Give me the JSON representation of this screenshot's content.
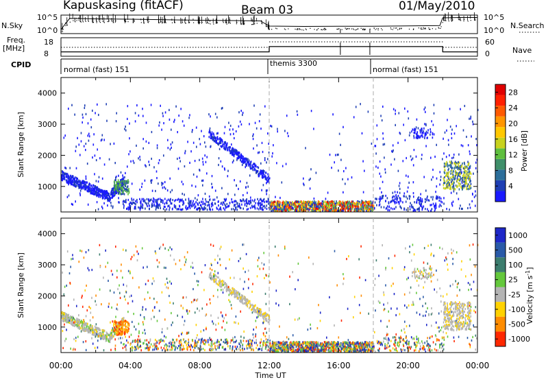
{
  "header": {
    "station": "Kapuskasing (fitACF)",
    "beam": "Beam 03",
    "date": "01/May/2010"
  },
  "chart_data": [
    {
      "type": "line",
      "panel": "noise",
      "left_label": "N.Sky",
      "right_label": "N.Search",
      "left_ticks": [
        "10^5",
        "10^0"
      ],
      "right_ticks": [
        "10^5",
        "10^0"
      ],
      "x": [
        "00:00",
        "00:30",
        "02:00",
        "04:00",
        "06:00",
        "08:00",
        "10:00",
        "11:30",
        "12:00",
        "14:00",
        "16:00",
        "18:00",
        "20:00",
        "21:50",
        "22:00",
        "23:00",
        "24:00"
      ],
      "series": [
        {
          "values": [
            0.2,
            0.85,
            0.82,
            0.8,
            0.77,
            0.74,
            0.72,
            0.7,
            0.4,
            0.38,
            0.39,
            0.39,
            0.41,
            0.43,
            0.88,
            0.9,
            0.9
          ]
        }
      ]
    },
    {
      "type": "line",
      "panel": "frequency",
      "left_label": "Freq.",
      "left_unit": "[MHz]",
      "right_label": "Nave",
      "left_ticks": [
        "18",
        "8"
      ],
      "right_ticks": [
        "60",
        "0"
      ],
      "x": [
        "00:00",
        "12:00",
        "18:00",
        "22:00",
        "24:00"
      ],
      "series": [
        {
          "name": "Freq.",
          "values": [
            10,
            13.5,
            13.5,
            10,
            10
          ]
        }
      ]
    },
    {
      "type": "table",
      "panel": "cpid",
      "label": "CPID",
      "segments": [
        {
          "name": "normal (fast) 151",
          "start": "00:00",
          "end": "12:00"
        },
        {
          "name": "themis 3300",
          "start": "12:00",
          "end": "18:00"
        },
        {
          "name": "normal (fast) 151",
          "start": "18:00",
          "end": "24:00"
        }
      ]
    },
    {
      "type": "heatmap",
      "panel": "power",
      "ylabel": "Slant Range [km]",
      "yticks": [
        1000,
        2000,
        3000,
        4000
      ],
      "ylim": [
        180,
        4500
      ],
      "colorbar_label": "Power [dB]",
      "colorbar_ticks": [
        4,
        8,
        12,
        16,
        20,
        24,
        28
      ],
      "colorbar_range": [
        0,
        30
      ],
      "colors": [
        "#1a1aff",
        "#1e3fb4",
        "#2c6e9a",
        "#3f8f6a",
        "#5fbf3f",
        "#c8d21e",
        "#ffc800",
        "#ff9600",
        "#ff5a00",
        "#ff2000",
        "#e00000"
      ]
    },
    {
      "type": "heatmap",
      "panel": "velocity",
      "ylabel": "Slant Range [km]",
      "yticks": [
        1000,
        2000,
        3000,
        4000
      ],
      "ylim": [
        180,
        4500
      ],
      "colorbar_label": "Velocity [m s-1]",
      "colorbar_ticks": [
        "1000",
        "500",
        "100",
        "25",
        "-25",
        "-100",
        "-500",
        "-1000"
      ],
      "colors": [
        "#1e28c8",
        "#2a5aa8",
        "#3c7d6e",
        "#64c83c",
        "#b4b4b4",
        "#ffd200",
        "#ff8c00",
        "#ff2800"
      ],
      "xticks": [
        "00:00",
        "04:00",
        "08:00",
        "12:00",
        "16:00",
        "20:00",
        "00:00"
      ],
      "xlabel": "Time UT"
    }
  ]
}
